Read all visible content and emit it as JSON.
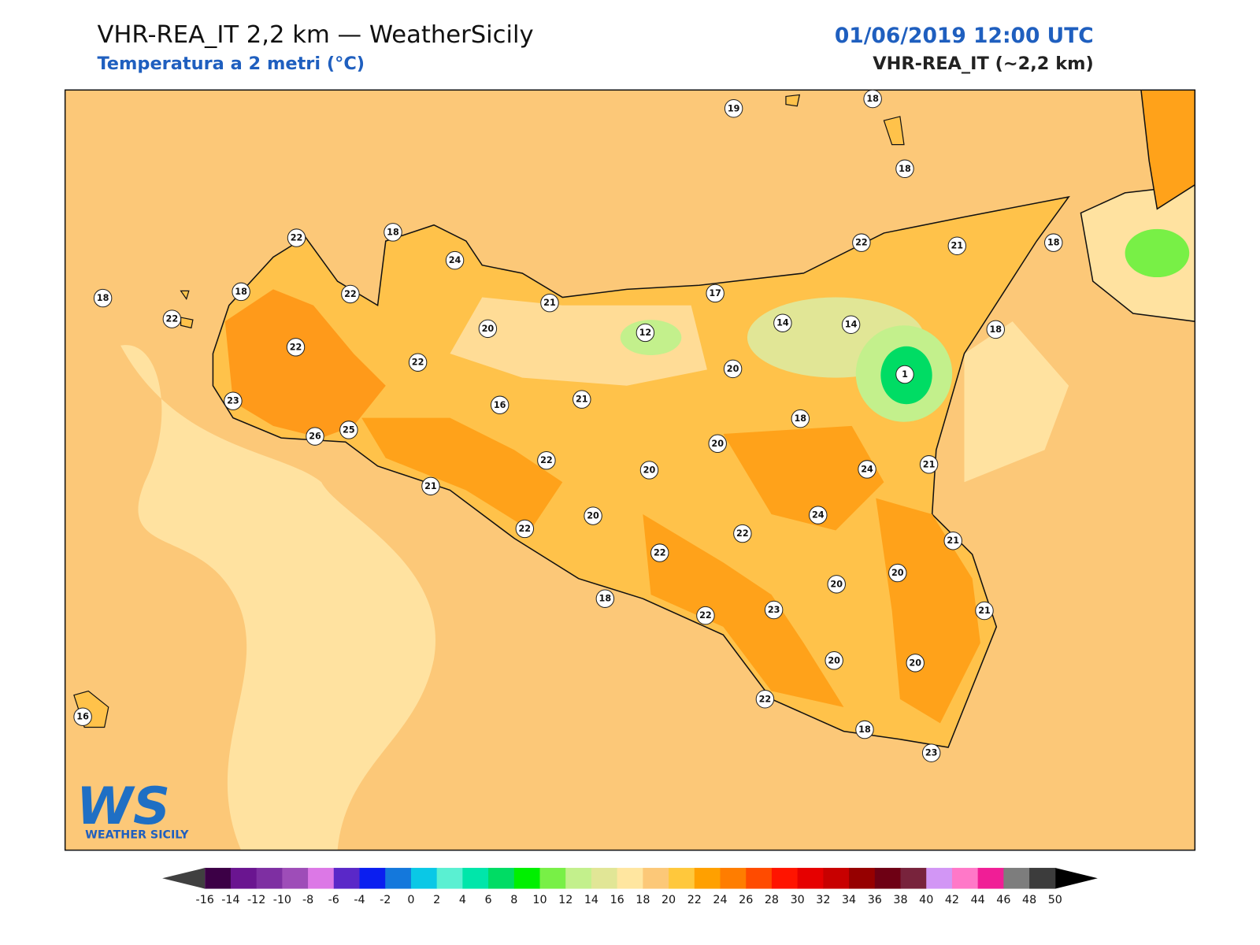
{
  "header": {
    "title": "VHR-REA_IT 2,2 km — WeatherSicily",
    "subtitle": "Temperatura a 2 metri (°C)",
    "datetime": "01/06/2019 12:00 UTC",
    "model": "VHR-REA_IT (~2,2 km)"
  },
  "stations": [
    19,
    18,
    18,
    22,
    18,
    24,
    18,
    18,
    22,
    22,
    22,
    20,
    21,
    17,
    22,
    21,
    18,
    12,
    14,
    14,
    18,
    22,
    20,
    1,
    23,
    16,
    21,
    18,
    26,
    25,
    20,
    22,
    20,
    24,
    21,
    21,
    24,
    20,
    22,
    22,
    22,
    21,
    20,
    20,
    18,
    22,
    23,
    21,
    20,
    20,
    22,
    18,
    23,
    16
  ],
  "colorbar": {
    "ticks": [
      -16,
      -14,
      -12,
      -10,
      -8,
      -6,
      -4,
      -2,
      0,
      2,
      4,
      6,
      8,
      10,
      12,
      14,
      16,
      18,
      20,
      22,
      24,
      26,
      28,
      30,
      32,
      34,
      36,
      38,
      40,
      42,
      44,
      46,
      48,
      50
    ],
    "colors": [
      "#3c0046",
      "#6a1590",
      "#7e2fa2",
      "#9e4db8",
      "#dc78e6",
      "#5a28c8",
      "#0a1ef0",
      "#1478dc",
      "#0ac8e6",
      "#5af0d2",
      "#00e6aa",
      "#00dc64",
      "#00f000",
      "#78f046",
      "#c3f08c",
      "#e1e696",
      "#ffe6a0",
      "#fcc878",
      "#ffc83c",
      "#ffa000",
      "#ff7d00",
      "#ff4b00",
      "#ff1400",
      "#e60000",
      "#c80000",
      "#960000",
      "#6e0014",
      "#78233c",
      "#d296f5",
      "#ff78c8",
      "#f01e96",
      "#7d7d7d",
      "#3c3c3c"
    ],
    "under_color": "#404040",
    "over_color": "#000000"
  },
  "logo": {
    "mark": "WS",
    "name": "WEATHER SICILY"
  }
}
